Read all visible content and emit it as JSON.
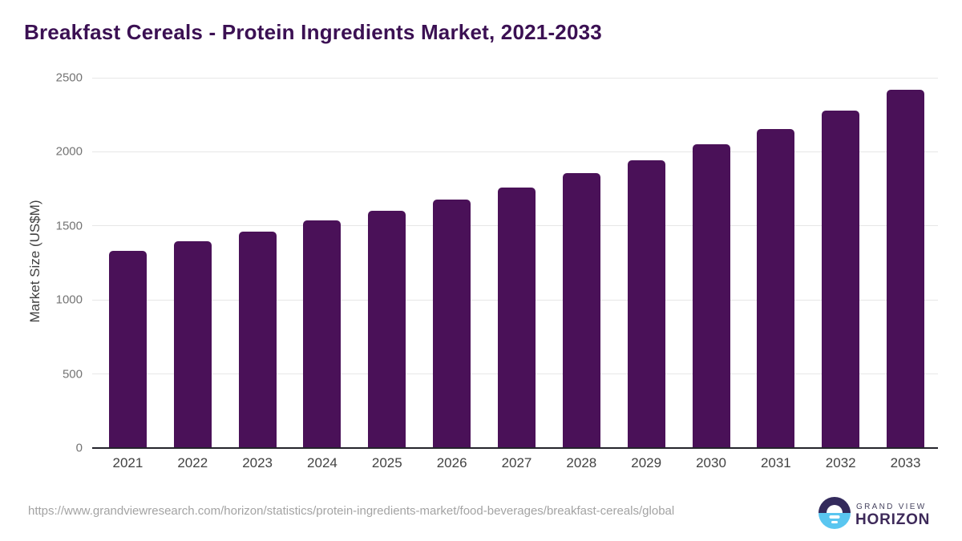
{
  "page": {
    "title": "Breakfast Cereals - Protein Ingredients Market, 2021-2033"
  },
  "chart_data": {
    "type": "bar",
    "title": "Breakfast Cereals - Protein Ingredients Market, 2021-2033",
    "categories": [
      "2021",
      "2022",
      "2023",
      "2024",
      "2025",
      "2026",
      "2027",
      "2028",
      "2029",
      "2030",
      "2031",
      "2032",
      "2033"
    ],
    "values": [
      1330,
      1395,
      1460,
      1535,
      1600,
      1680,
      1760,
      1855,
      1945,
      2050,
      2155,
      2280,
      2420
    ],
    "xlabel": "",
    "ylabel": "Market Size (US$M)",
    "ylim": [
      0,
      2500
    ],
    "yticks": [
      0,
      500,
      1000,
      1500,
      2000,
      2500
    ],
    "grid": true,
    "legend_position": "none",
    "bar_color": "#4a1158"
  },
  "footer": {
    "source_url": "https://www.grandviewresearch.com/horizon/statistics/protein-ingredients-market/food-beverages/breakfast-cereals/global",
    "logo": {
      "top_text": "GRAND VIEW",
      "bottom_text": "HORIZON"
    }
  },
  "colors": {
    "title_text": "#3b1053",
    "bar": "#4a1158",
    "gridline": "#e7e7e7",
    "axis_line": "#24242b",
    "y_tick_text": "#747474",
    "x_tick_text": "#424242",
    "url_text": "#a3a3a3",
    "logo_dark": "#332a5c",
    "logo_blue": "#5ac6f0",
    "logo_horizon_text": "#3e2a5a"
  }
}
